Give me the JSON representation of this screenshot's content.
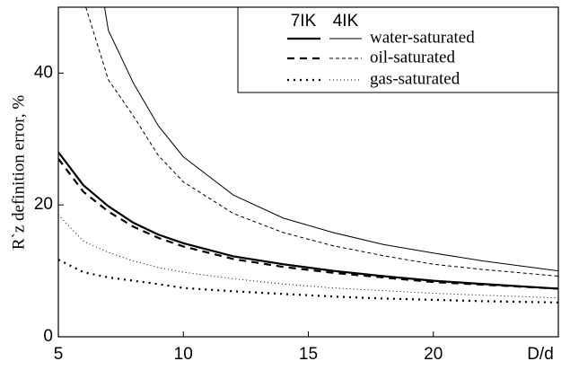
{
  "chart_data": {
    "type": "line",
    "y_label": "R`z definition error, %",
    "x_label": "D/d",
    "xlim": [
      5,
      25
    ],
    "xticks": [
      5,
      10,
      15,
      20
    ],
    "ylim": [
      0,
      50
    ],
    "yticks": [
      0,
      20,
      40
    ],
    "legend": {
      "columns": [
        "7IK",
        "4IK"
      ],
      "rows": [
        "water-saturated",
        "oil-saturated",
        "gas-saturated"
      ]
    },
    "series": [
      {
        "legend_column": 0,
        "legend_row": 0,
        "x": [
          5,
          6,
          7,
          8,
          9,
          10,
          12,
          14,
          16,
          18,
          20,
          22,
          25
        ],
        "values": [
          28,
          23,
          19.8,
          17.3,
          15.5,
          14.2,
          12.2,
          11,
          10,
          9.2,
          8.5,
          8,
          7.3
        ]
      },
      {
        "legend_column": 0,
        "legend_row": 1,
        "x": [
          5,
          6,
          7,
          8,
          9,
          10,
          12,
          14,
          16,
          18,
          20,
          22,
          25
        ],
        "values": [
          27,
          22,
          19,
          16.7,
          15,
          13.7,
          11.8,
          10.6,
          9.7,
          9,
          8.3,
          7.9,
          7.3
        ]
      },
      {
        "legend_column": 0,
        "legend_row": 2,
        "x": [
          5,
          6,
          7,
          8,
          9,
          10,
          12,
          14,
          16,
          18,
          20,
          22,
          25
        ],
        "values": [
          11.7,
          9.8,
          9,
          8.5,
          8,
          7.4,
          6.9,
          6.5,
          6.1,
          5.8,
          5.6,
          5.4,
          5.2
        ]
      },
      {
        "legend_column": 1,
        "legend_row": 0,
        "x": [
          6.85,
          7,
          8,
          9,
          10,
          12,
          14,
          16,
          18,
          20,
          22,
          25
        ],
        "values": [
          50,
          46.5,
          38.5,
          32,
          27.3,
          21.5,
          18,
          15.8,
          14,
          12.7,
          11.5,
          10
        ]
      },
      {
        "legend_column": 1,
        "legend_row": 1,
        "x": [
          6.1,
          7,
          8,
          9,
          10,
          12,
          14,
          16,
          18,
          20,
          22,
          25
        ],
        "values": [
          50,
          39,
          33.5,
          27.5,
          23.5,
          18.7,
          15.8,
          13.8,
          12.3,
          11,
          10.2,
          9.2
        ]
      },
      {
        "legend_column": 1,
        "legend_row": 2,
        "x": [
          5,
          6,
          7,
          8,
          9,
          10,
          12,
          14,
          16,
          18,
          20,
          22,
          25
        ],
        "values": [
          18.5,
          14.5,
          12.8,
          11.5,
          10.5,
          9.8,
          8.8,
          8,
          7.4,
          7,
          6.6,
          6.3,
          5.9
        ]
      }
    ]
  }
}
